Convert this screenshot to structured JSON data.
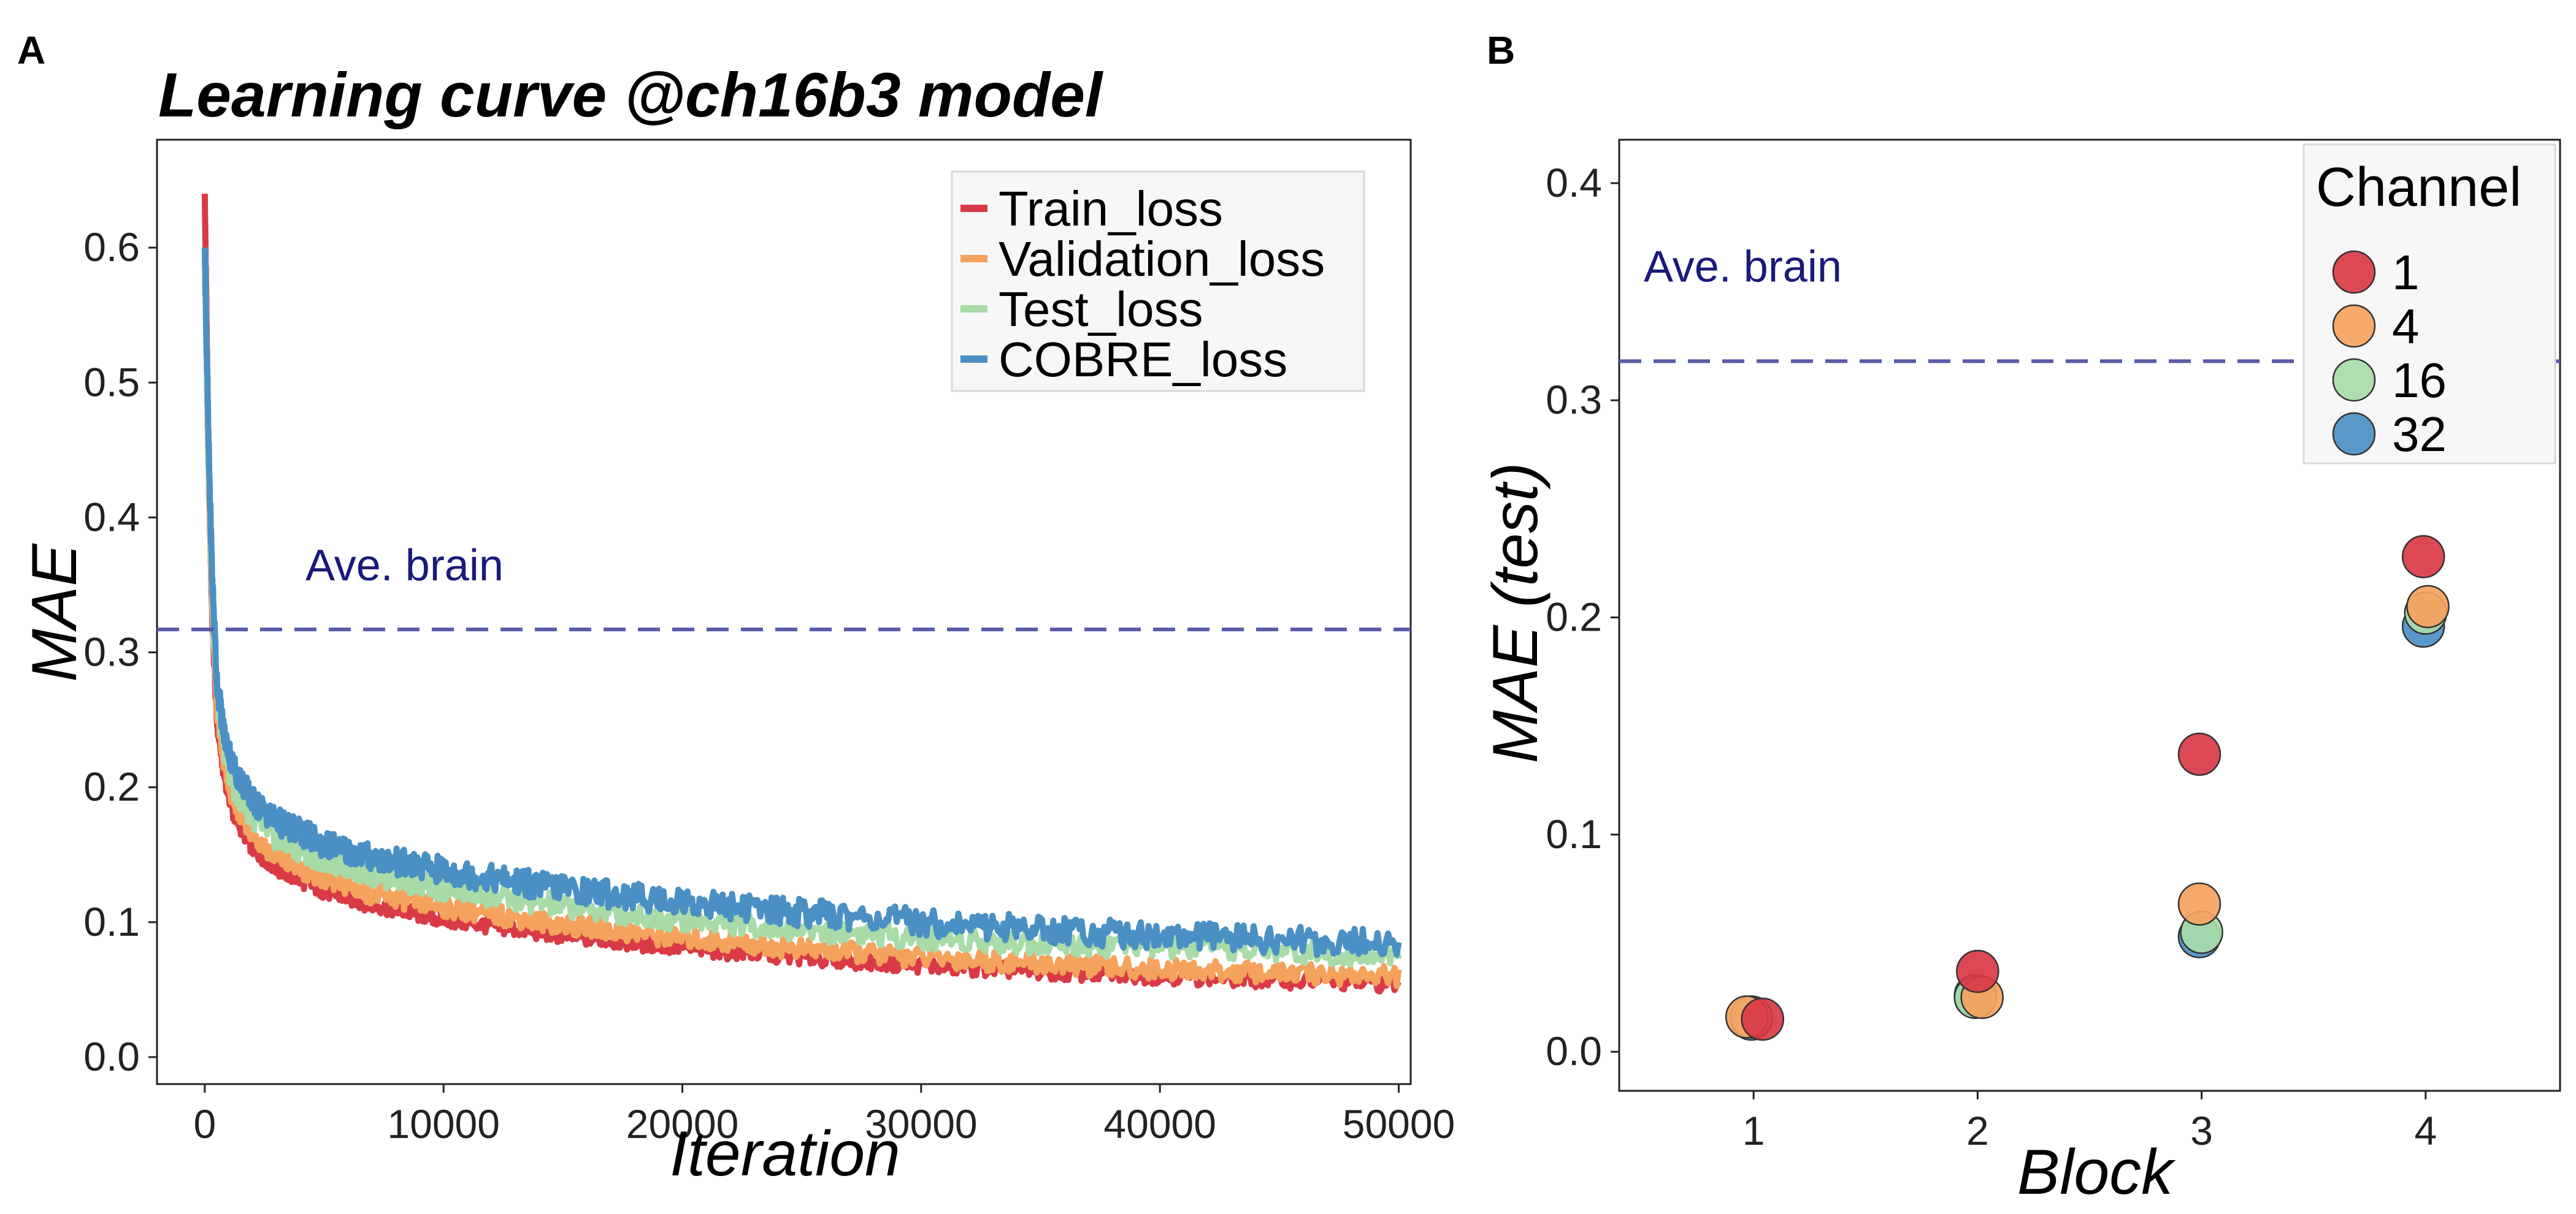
{
  "panelA": {
    "label": "A",
    "chart_data": {
      "type": "line",
      "title": "Learning curve @ch16b3 model",
      "xlabel": "Iteration",
      "ylabel": "MAE",
      "xlim": [
        -2000,
        50500
      ],
      "ylim": [
        -0.02,
        0.68
      ],
      "xticks": [
        0,
        10000,
        20000,
        30000,
        40000,
        50000
      ],
      "yticks": [
        0.0,
        0.1,
        0.2,
        0.3,
        0.4,
        0.5,
        0.6
      ],
      "x_tick_labels": [
        "0",
        "10000",
        "20000",
        "30000",
        "40000",
        "50000"
      ],
      "y_tick_labels": [
        "0.0",
        "0.1",
        "0.2",
        "0.3",
        "0.4",
        "0.5",
        "0.6"
      ],
      "legend_position": "top-right",
      "series": [
        {
          "name": "Train_loss",
          "color": "#d93a46",
          "x": [
            0,
            150,
            300,
            500,
            800,
            1200,
            2000,
            3000,
            5000,
            7000,
            10000,
            15000,
            20000,
            25000,
            30000,
            35000,
            40000,
            45000,
            50000
          ],
          "y": [
            0.64,
            0.45,
            0.33,
            0.25,
            0.21,
            0.18,
            0.155,
            0.14,
            0.123,
            0.113,
            0.102,
            0.09,
            0.081,
            0.074,
            0.068,
            0.063,
            0.06,
            0.057,
            0.054
          ]
        },
        {
          "name": "Validation_loss",
          "color": "#f5a25d",
          "x": [
            0,
            150,
            300,
            500,
            800,
            1200,
            2000,
            3000,
            5000,
            7000,
            10000,
            15000,
            20000,
            25000,
            30000,
            35000,
            40000,
            45000,
            50000
          ],
          "y": [
            0.6,
            0.44,
            0.34,
            0.26,
            0.215,
            0.19,
            0.165,
            0.148,
            0.132,
            0.121,
            0.111,
            0.098,
            0.088,
            0.08,
            0.074,
            0.069,
            0.065,
            0.062,
            0.06
          ]
        },
        {
          "name": "Test_loss",
          "color": "#a8dba8",
          "x": [
            0,
            150,
            300,
            500,
            800,
            1200,
            2000,
            3000,
            5000,
            7000,
            10000,
            15000,
            20000,
            25000,
            30000,
            35000,
            40000,
            45000,
            50000
          ],
          "y": [
            0.6,
            0.45,
            0.35,
            0.27,
            0.23,
            0.2,
            0.178,
            0.162,
            0.146,
            0.136,
            0.125,
            0.112,
            0.102,
            0.095,
            0.089,
            0.085,
            0.082,
            0.079,
            0.076
          ]
        },
        {
          "name": "COBRE_loss",
          "color": "#4a90c4",
          "x": [
            0,
            150,
            300,
            500,
            800,
            1200,
            2000,
            3000,
            5000,
            7000,
            10000,
            15000,
            20000,
            25000,
            30000,
            35000,
            40000,
            45000,
            50000
          ],
          "y": [
            0.6,
            0.46,
            0.36,
            0.28,
            0.24,
            0.215,
            0.19,
            0.175,
            0.158,
            0.148,
            0.138,
            0.125,
            0.115,
            0.107,
            0.1,
            0.095,
            0.09,
            0.087,
            0.084
          ]
        }
      ],
      "reference_line": {
        "value": 0.317,
        "label": "Ave. brain",
        "color": "#5a5aa8",
        "label_color": "#1a1a7a"
      }
    }
  },
  "panelB": {
    "label": "B",
    "chart_data": {
      "type": "scatter",
      "xlabel": "Block",
      "ylabel": "MAE (test)",
      "xlim": [
        0.4,
        4.6
      ],
      "ylim": [
        -0.018,
        0.42
      ],
      "xticks": [
        1,
        2,
        3,
        4
      ],
      "yticks": [
        0.0,
        0.1,
        0.2,
        0.3,
        0.4
      ],
      "x_tick_labels": [
        "1",
        "2",
        "3",
        "4"
      ],
      "y_tick_labels": [
        "0.0",
        "0.1",
        "0.2",
        "0.3",
        "0.4"
      ],
      "legend_title": "Channel",
      "legend_position": "top-right",
      "series": [
        {
          "name": "32",
          "color": "#4a90c4",
          "x": [
            0.99,
            1.99,
            2.99,
            3.99
          ],
          "y": [
            0.015,
            0.026,
            0.053,
            0.196
          ]
        },
        {
          "name": "16",
          "color": "#a8dba8",
          "x": [
            0.99,
            1.99,
            3.0,
            4.0
          ],
          "y": [
            0.016,
            0.025,
            0.055,
            0.202
          ]
        },
        {
          "name": "4",
          "color": "#f5a25d",
          "x": [
            0.97,
            2.02,
            2.99,
            4.01
          ],
          "y": [
            0.016,
            0.025,
            0.068,
            0.205
          ]
        },
        {
          "name": "1",
          "color": "#d93a46",
          "x": [
            1.04,
            2.0,
            2.99,
            3.99
          ],
          "y": [
            0.015,
            0.037,
            0.137,
            0.228
          ]
        }
      ],
      "legend_order": [
        "1",
        "4",
        "16",
        "32"
      ],
      "reference_line": {
        "value": 0.318,
        "label": "Ave. brain",
        "color": "#5a5aa8",
        "label_color": "#1a1a7a"
      }
    }
  }
}
